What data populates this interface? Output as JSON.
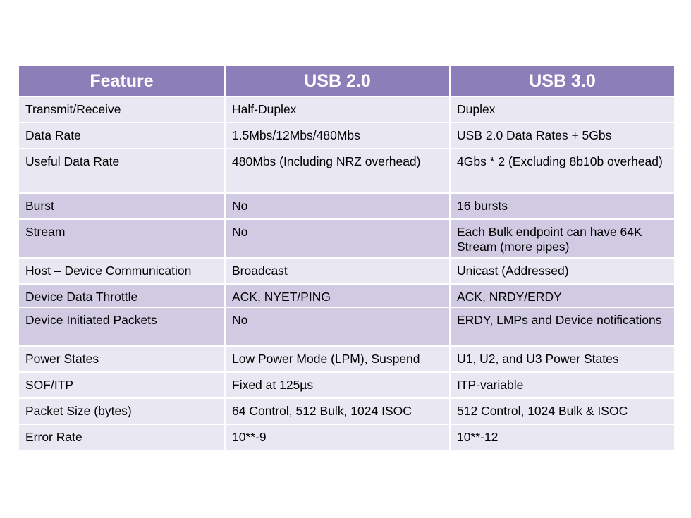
{
  "table": {
    "headers": [
      "Feature",
      "USB 2.0",
      "USB 3.0"
    ],
    "rows": [
      [
        "Transmit/Receive",
        "Half-Duplex",
        "Duplex"
      ],
      [
        "Data Rate",
        "1.5Mbs/12Mbs/480Mbs",
        "USB 2.0 Data Rates + 5Gbs"
      ],
      [
        "Useful Data Rate",
        "480Mbs (Including NRZ overhead)",
        "4Gbs  * 2   (Excluding 8b10b overhead)"
      ],
      [
        "Burst",
        "No",
        "16 bursts"
      ],
      [
        "Stream",
        "No",
        "Each Bulk endpoint can have 64K Stream (more pipes)"
      ],
      [
        "Host – Device Communication",
        "Broadcast",
        "Unicast (Addressed)"
      ],
      [
        "Device Data Throttle",
        "ACK, NYET/PING",
        "ACK, NRDY/ERDY"
      ],
      [
        "Device Initiated Packets",
        "No",
        "ERDY, LMPs and Device notifications"
      ],
      [
        "Power States",
        "Low Power Mode (LPM), Suspend",
        "U1, U2, and U3 Power States"
      ],
      [
        "SOF/ITP",
        "Fixed at 125µs",
        "ITP-variable"
      ],
      [
        "Packet Size (bytes)",
        "64 Control, 512 Bulk, 1024 ISOC",
        "512 Control, 1024 Bulk & ISOC"
      ],
      [
        "Error Rate",
        "10**-9",
        "10**-12"
      ]
    ]
  },
  "colors": {
    "header_bg": "#8b7eb9",
    "row_light": "#e9e7f1",
    "row_dark": "#d0cbe3"
  }
}
